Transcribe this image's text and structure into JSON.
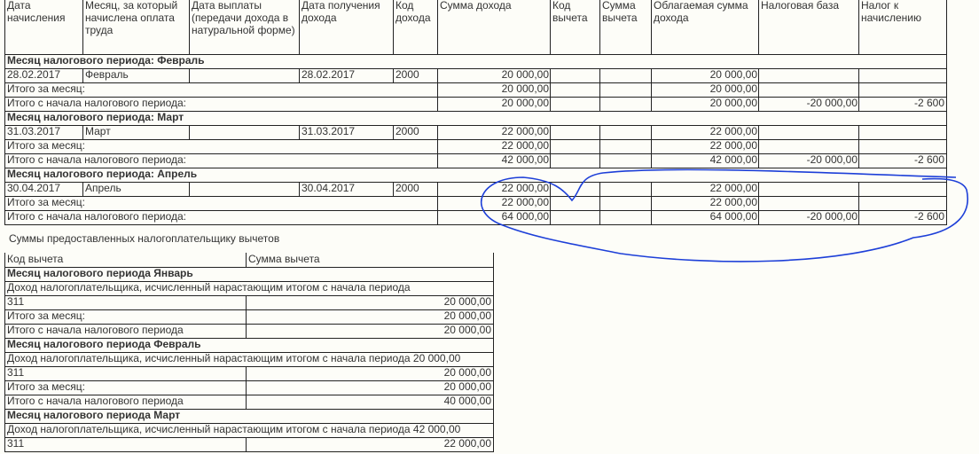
{
  "table1": {
    "columns": [
      "Дата начисления",
      "Месяц, за который начислена оплата труда",
      "Дата выплаты (передачи дохода в натуральной форме)",
      "Дата получения дохода",
      "Код дохода",
      "Сумма дохода",
      "Код вычета",
      "Сумма вычета",
      "Облагаемая сумма дохода",
      "Налоговая база",
      "Налог к начислению"
    ],
    "sections": [
      {
        "title": "Месяц налогового периода: Февраль",
        "rows": [
          {
            "date": "28.02.2017",
            "month": "Февраль",
            "received": "28.02.2017",
            "code": "2000",
            "income": "20 000,00",
            "taxable": "20 000,00"
          },
          {
            "label": "Итого за месяц:",
            "income": "20 000,00",
            "taxable": "20 000,00"
          },
          {
            "label": "Итого с начала налогового периода:",
            "income": "20 000,00",
            "taxable": "20 000,00",
            "tax_base": "-20 000,00",
            "tax": "-2 600"
          }
        ]
      },
      {
        "title": "Месяц налогового периода: Март",
        "rows": [
          {
            "date": "31.03.2017",
            "month": "Март",
            "received": "31.03.2017",
            "code": "2000",
            "income": "22 000,00",
            "taxable": "22 000,00"
          },
          {
            "label": "Итого за месяц:",
            "income": "22 000,00",
            "taxable": "22 000,00"
          },
          {
            "label": "Итого с начала налогового периода:",
            "income": "42 000,00",
            "taxable": "42 000,00",
            "tax_base": "-20 000,00",
            "tax": "-2 600"
          }
        ]
      },
      {
        "title": "Месяц налогового периода: Апрель",
        "rows": [
          {
            "date": "30.04.2017",
            "month": "Апрель",
            "received": "30.04.2017",
            "code": "2000",
            "income": "22 000,00",
            "taxable": "22 000,00"
          },
          {
            "label": "Итого за месяц:",
            "income": "22 000,00",
            "taxable": "22 000,00"
          },
          {
            "label": "Итого с начала налогового периода:",
            "income": "64 000,00",
            "taxable": "64 000,00",
            "tax_base": "-20 000,00",
            "tax": "-2 600"
          }
        ]
      }
    ]
  },
  "deductions_title": "Суммы предоставленных налогоплательщику вычетов",
  "table2": {
    "columns": [
      "Код вычета",
      "Сумма вычета"
    ],
    "sections": [
      {
        "title": "Месяц налогового периода Январь",
        "income_line": {
          "text": "Доход налогоплательщика, исчисленный нарастающим итогом с начала периода"
        },
        "rows": [
          {
            "label": "311",
            "amount": "20 000,00"
          },
          {
            "label": "Итого за месяц:",
            "amount": "20 000,00"
          },
          {
            "label": "Итого с начала налогового периода",
            "amount": "20 000,00"
          }
        ]
      },
      {
        "title": "Месяц налогового периода Февраль",
        "income_line": {
          "text": "Доход налогоплательщика, исчисленный нарастающим итогом с начала периода",
          "amount": "20 000,00"
        },
        "rows": [
          {
            "label": "311",
            "amount": "20 000,00"
          },
          {
            "label": "Итого за месяц:",
            "amount": "20 000,00"
          },
          {
            "label": "Итого с начала налогового периода",
            "amount": "40 000,00"
          }
        ]
      },
      {
        "title": "Месяц налогового периода Март",
        "income_line": {
          "text": "Доход налогоплательщика, исчисленный нарастающим итогом с начала периода",
          "amount": "42 000,00"
        },
        "rows": [
          {
            "label": "311",
            "amount": "22 000,00"
          }
        ]
      }
    ]
  }
}
